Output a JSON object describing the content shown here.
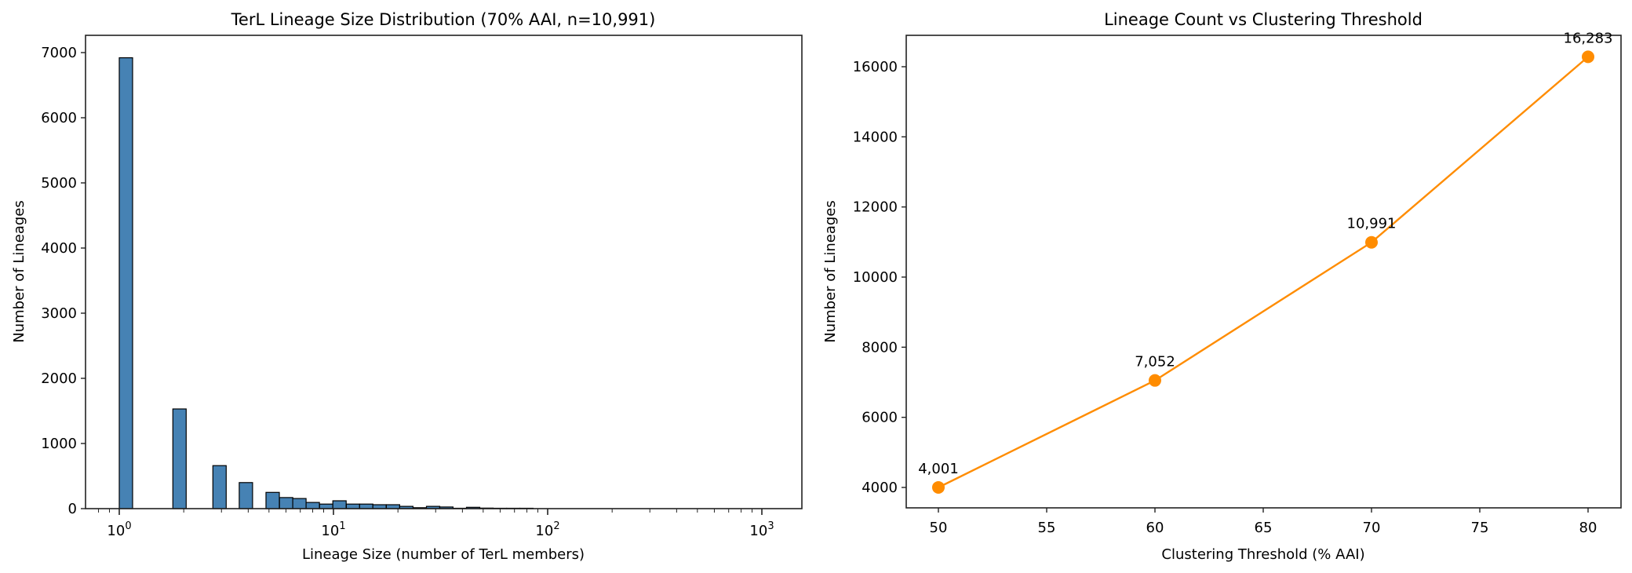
{
  "chart_data": [
    {
      "type": "bar",
      "title": "TerL Lineage Size Distribution (70% AAI, n=10,991)",
      "xlabel": "Lineage Size (number of TerL members)",
      "ylabel": "Number of Lineages",
      "xscale": "log",
      "xlim": [
        0.6,
        1600
      ],
      "ylim": [
        0,
        7280
      ],
      "x_ticks": [
        "10^0",
        "10^1",
        "10^2",
        "10^3"
      ],
      "y_ticks": [
        0,
        1000,
        2000,
        3000,
        4000,
        5000,
        6000,
        7000
      ],
      "bar_color": "#4682b4",
      "bins_log10_start": [
        0.0,
        0.25,
        0.437,
        0.56,
        0.685,
        0.748,
        0.81,
        0.872,
        0.935,
        0.997,
        1.06,
        1.122,
        1.184,
        1.247,
        1.309,
        1.372,
        1.434,
        1.496,
        1.559,
        1.621,
        1.683,
        1.746,
        1.808,
        1.87
      ],
      "bin_width_log10": 0.0623,
      "values": [
        6920,
        1530,
        660,
        400,
        250,
        170,
        155,
        95,
        70,
        120,
        70,
        70,
        60,
        60,
        35,
        15,
        35,
        25,
        5,
        20,
        8,
        5,
        4,
        3
      ],
      "grid": false
    },
    {
      "type": "line",
      "title": "Lineage Count vs Clustering Threshold",
      "xlabel": "Clustering Threshold (% AAI)",
      "ylabel": "Number of Lineages",
      "x": [
        50,
        60,
        70,
        80
      ],
      "values": [
        4001,
        7052,
        10991,
        16283
      ],
      "data_labels": [
        "4,001",
        "7,052",
        "10,991",
        "16,283"
      ],
      "x_ticks": [
        50,
        55,
        60,
        65,
        70,
        75,
        80
      ],
      "y_ticks": [
        4000,
        6000,
        8000,
        10000,
        12000,
        14000,
        16000
      ],
      "xlim": [
        48.5,
        81.5
      ],
      "ylim": [
        3386,
        16898
      ],
      "line_color": "#ff8c00",
      "marker": "circle",
      "grid": false
    }
  ]
}
